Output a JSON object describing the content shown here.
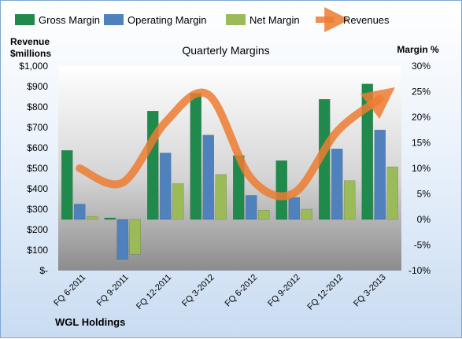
{
  "chart_data": {
    "type": "bar",
    "title": "Quarterly Margins",
    "left_axis_label_lines": [
      "Revenue",
      "$millions"
    ],
    "right_axis_label": "Margin %",
    "footer": "WGL Holdings",
    "categories": [
      "FQ 6-2011",
      "FQ 9-2011",
      "FQ 12-2011",
      "FQ 3-2012",
      "FQ 6-2012",
      "FQ 9-2012",
      "FQ 12-2012",
      "FQ 3-2013"
    ],
    "bar_series": [
      {
        "name": "Gross Margin",
        "color": "#1f8a4c",
        "values": [
          13.5,
          0.3,
          21.2,
          24.7,
          12.5,
          11.5,
          23.5,
          26.5
        ]
      },
      {
        "name": "Operating Margin",
        "color": "#4f81bd",
        "values": [
          3.0,
          -7.8,
          13.0,
          16.5,
          4.7,
          4.3,
          13.8,
          17.5
        ]
      },
      {
        "name": "Net Margin",
        "color": "#9bbb59",
        "values": [
          0.6,
          -6.8,
          7.0,
          8.8,
          1.8,
          2.0,
          7.6,
          10.3
        ]
      }
    ],
    "line_series": {
      "name": "Revenues",
      "color": "#ed7d31",
      "values": [
        500,
        430,
        725,
        860,
        450,
        380,
        680,
        840
      ]
    },
    "left_axis": {
      "min": 0,
      "max": 1000,
      "step": 100,
      "tick_labels": [
        "$-",
        "$100",
        "$200",
        "$300",
        "$400",
        "$500",
        "$600",
        "$700",
        "$800",
        "$900",
        "$1,000"
      ]
    },
    "right_axis": {
      "min": -10,
      "max": 30,
      "step": 5,
      "tick_labels": [
        "-10%",
        "-5%",
        "0%",
        "5%",
        "10%",
        "15%",
        "20%",
        "25%",
        "30%"
      ]
    },
    "grid": false,
    "legend_position": "top"
  }
}
